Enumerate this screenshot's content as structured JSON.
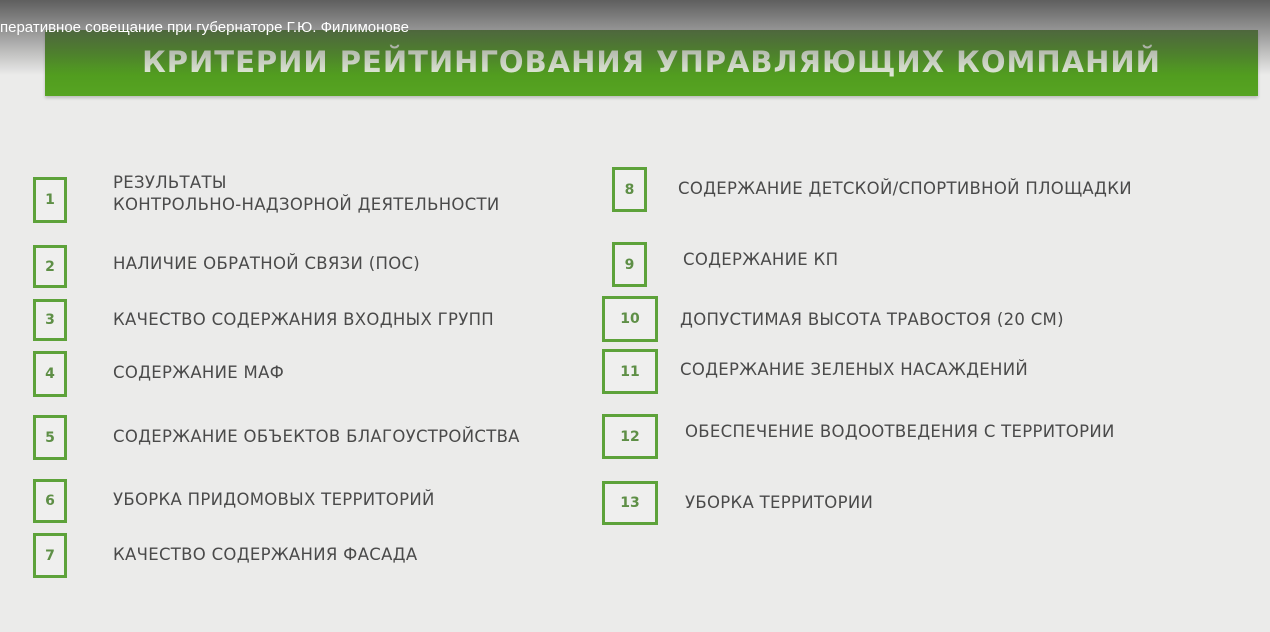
{
  "video": {
    "title": "перативное совещание при губернаторе Г.Ю. Филимонове"
  },
  "slide": {
    "title": "КРИТЕРИИ РЕЙТИНГОВАНИЯ УПРАВЛЯЮЩИХ КОМПАНИЙ",
    "accent_color": "#4f9a1e",
    "criteria": [
      {
        "num": "1",
        "line1": "РЕЗУЛЬТАТЫ",
        "line2": "КОНТРОЛЬНО-НАДЗОРНОЙ ДЕЯТЕЛЬНОСТИ"
      },
      {
        "num": "2",
        "label": "НАЛИЧИЕ ОБРАТНОЙ СВЯЗИ (ПОС)"
      },
      {
        "num": "3",
        "label": "КАЧЕСТВО СОДЕРЖАНИЯ ВХОДНЫХ ГРУПП"
      },
      {
        "num": "4",
        "label": "СОДЕРЖАНИЕ МАФ"
      },
      {
        "num": "5",
        "label": "СОДЕРЖАНИЕ ОБЪЕКТОВ БЛАГОУСТРОЙСТВА"
      },
      {
        "num": "6",
        "label": "УБОРКА ПРИДОМОВЫХ ТЕРРИТОРИЙ"
      },
      {
        "num": "7",
        "label": "КАЧЕСТВО СОДЕРЖАНИЯ ФАСАДА"
      },
      {
        "num": "8",
        "label": "СОДЕРЖАНИЕ ДЕТСКОЙ/СПОРТИВНОЙ ПЛОЩАДКИ"
      },
      {
        "num": "9",
        "label": "СОДЕРЖАНИЕ КП"
      },
      {
        "num": "10",
        "label": "ДОПУСТИМАЯ ВЫСОТА ТРАВОСТОЯ (20 СМ)"
      },
      {
        "num": "11",
        "label": "СОДЕРЖАНИЕ ЗЕЛЕНЫХ НАСАЖДЕНИЙ"
      },
      {
        "num": "12",
        "label": "ОБЕСПЕЧЕНИЕ ВОДООТВЕДЕНИЯ С ТЕРРИТОРИИ"
      },
      {
        "num": "13",
        "label": "УБОРКА ТЕРРИТОРИИ"
      }
    ]
  }
}
